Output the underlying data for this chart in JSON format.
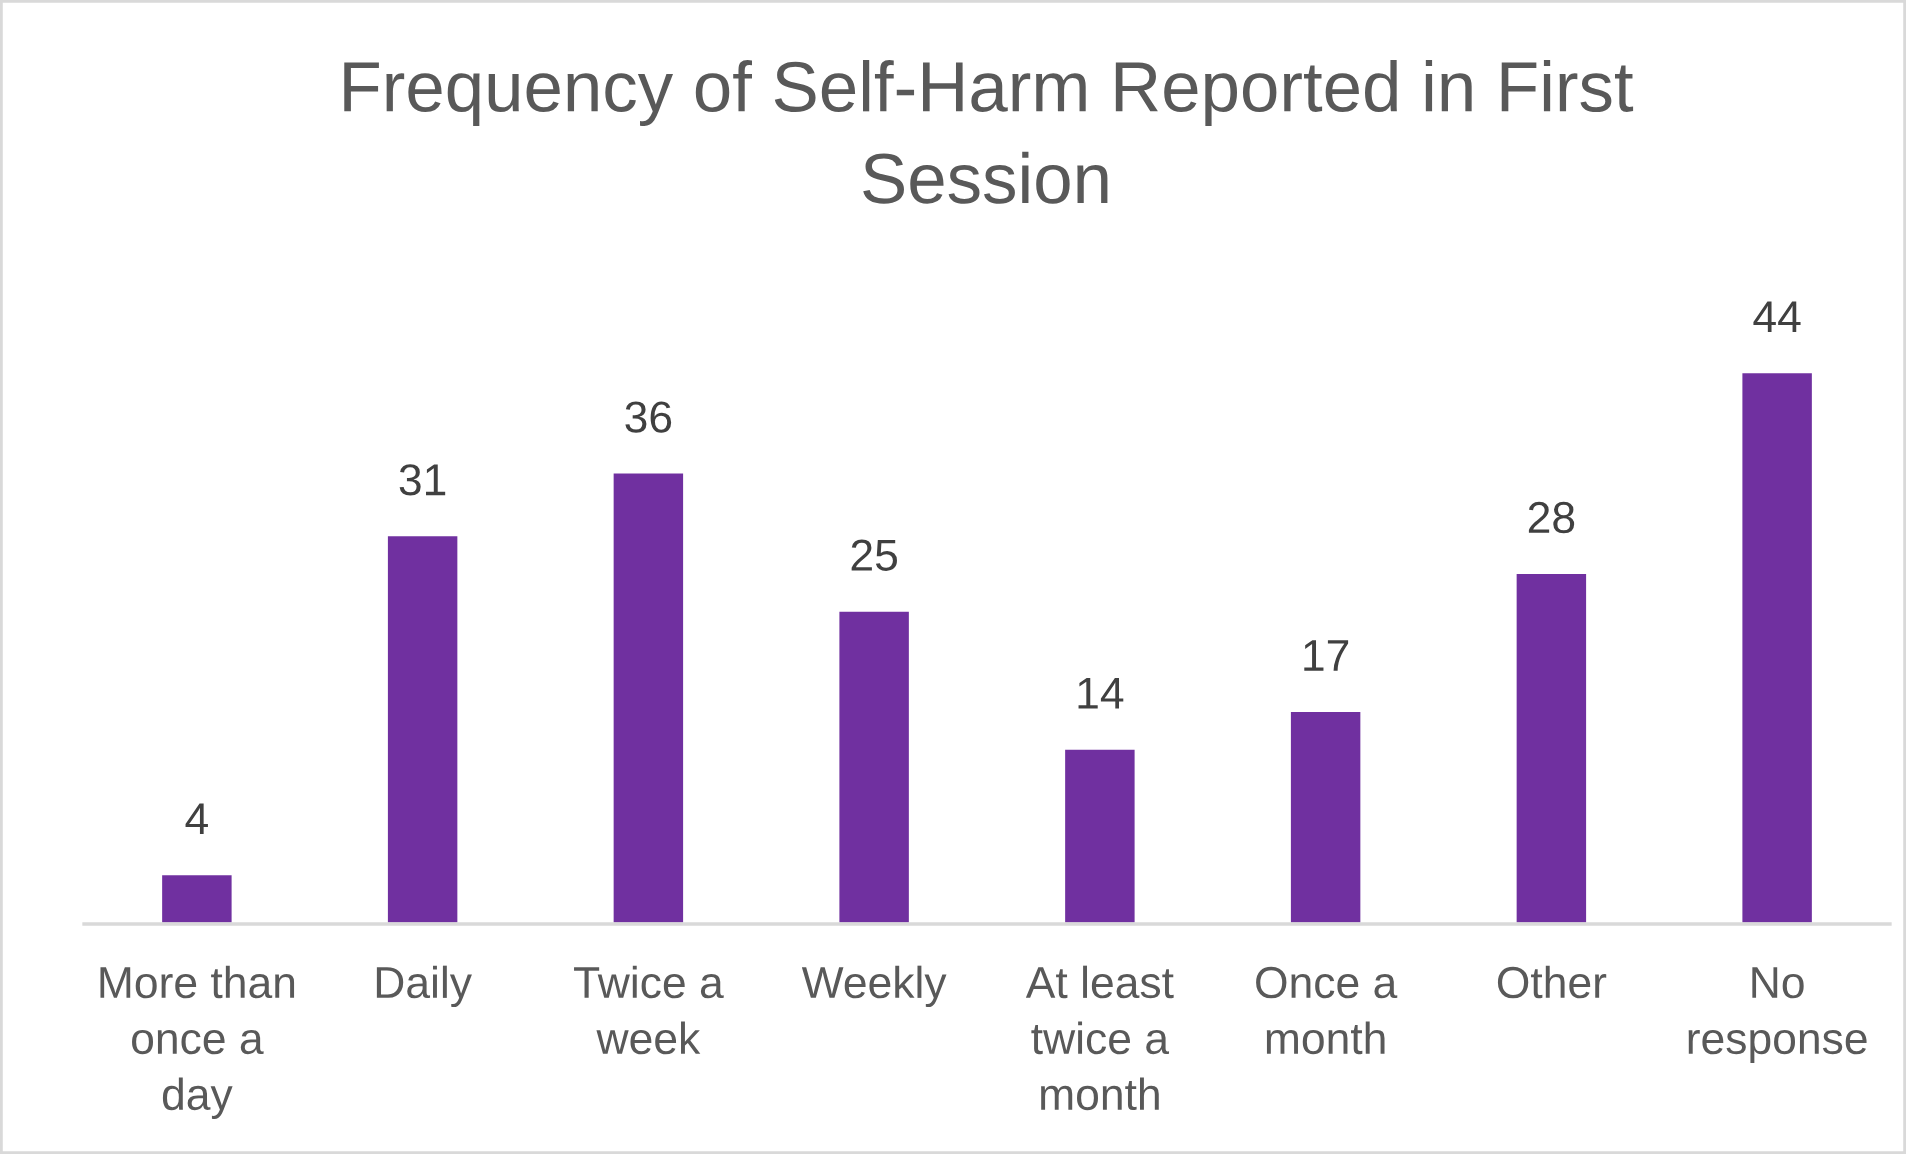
{
  "chart_data": {
    "type": "bar",
    "title": "Frequency of Self-Harm Reported in First\nSession",
    "categories": [
      "More than\nonce a\nday",
      "Daily",
      "Twice a\nweek",
      "Weekly",
      "At least\ntwice a\nmonth",
      "Once a\nmonth",
      "Other",
      "No\nresponse"
    ],
    "values": [
      4,
      31,
      36,
      25,
      14,
      17,
      28,
      44
    ],
    "color": "#7030a0",
    "data_labels": true,
    "tick_labels": "x"
  }
}
